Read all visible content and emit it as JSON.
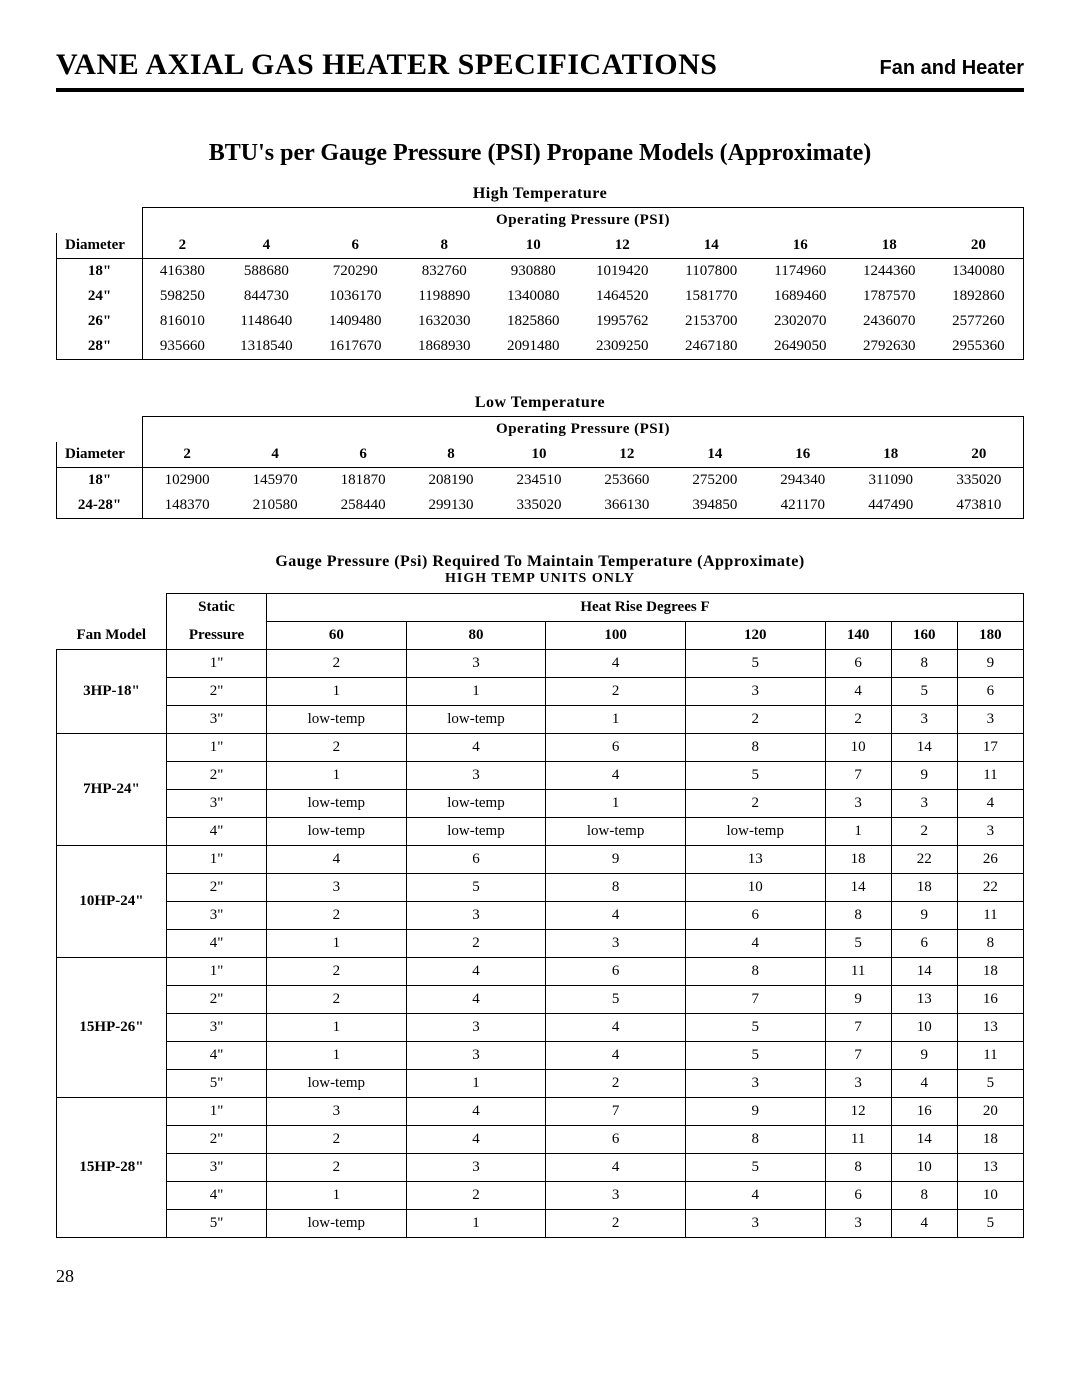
{
  "header": {
    "title": "VANE AXIAL GAS HEATER SPECIFICATIONS",
    "subtitle": "Fan and Heater"
  },
  "section_title": "BTU's  per Gauge Pressure (PSI) Propane Models (Approximate)",
  "high_temp": {
    "label": "High Temperature",
    "op_label": "Operating Pressure (PSI)",
    "diam_label": "Diameter",
    "psi": [
      "2",
      "4",
      "6",
      "8",
      "10",
      "12",
      "14",
      "16",
      "18",
      "20"
    ],
    "rows": [
      {
        "d": "18\"",
        "v": [
          "416380",
          "588680",
          "720290",
          "832760",
          "930880",
          "1019420",
          "1107800",
          "1174960",
          "1244360",
          "1340080"
        ]
      },
      {
        "d": "24\"",
        "v": [
          "598250",
          "844730",
          "1036170",
          "1198890",
          "1340080",
          "1464520",
          "1581770",
          "1689460",
          "1787570",
          "1892860"
        ]
      },
      {
        "d": "26\"",
        "v": [
          "816010",
          "1148640",
          "1409480",
          "1632030",
          "1825860",
          "1995762",
          "2153700",
          "2302070",
          "2436070",
          "2577260"
        ]
      },
      {
        "d": "28\"",
        "v": [
          "935660",
          "1318540",
          "1617670",
          "1868930",
          "2091480",
          "2309250",
          "2467180",
          "2649050",
          "2792630",
          "2955360"
        ]
      }
    ]
  },
  "low_temp": {
    "label": "Low Temperature",
    "op_label": "Operating Pressure (PSI)",
    "diam_label": "Diameter",
    "psi": [
      "2",
      "4",
      "6",
      "8",
      "10",
      "12",
      "14",
      "16",
      "18",
      "20"
    ],
    "rows": [
      {
        "d": "18\"",
        "v": [
          "102900",
          "145970",
          "181870",
          "208190",
          "234510",
          "253660",
          "275200",
          "294340",
          "311090",
          "335020"
        ]
      },
      {
        "d": "24-28\"",
        "v": [
          "148370",
          "210580",
          "258440",
          "299130",
          "335020",
          "366130",
          "394850",
          "421170",
          "447490",
          "473810"
        ]
      }
    ]
  },
  "gauge": {
    "caption1": "Gauge Pressure (Psi) Required To Maintain Temperature (Approximate)",
    "caption2": "HIGH TEMP UNITS ONLY",
    "fan_label": "Fan Model",
    "sp_label_1": "Static",
    "sp_label_2": "Pressure",
    "heat_label": "Heat Rise Degrees F",
    "degrees": [
      "60",
      "80",
      "100",
      "120",
      "140",
      "160",
      "180"
    ],
    "groups": [
      {
        "model": "3HP-18\"",
        "rows": [
          {
            "sp": "1\"",
            "v": [
              "2",
              "3",
              "4",
              "5",
              "6",
              "8",
              "9"
            ]
          },
          {
            "sp": "2\"",
            "v": [
              "1",
              "1",
              "2",
              "3",
              "4",
              "5",
              "6"
            ]
          },
          {
            "sp": "3\"",
            "v": [
              "low-temp",
              "low-temp",
              "1",
              "2",
              "2",
              "3",
              "3"
            ]
          }
        ]
      },
      {
        "model": "7HP-24\"",
        "rows": [
          {
            "sp": "1\"",
            "v": [
              "2",
              "4",
              "6",
              "8",
              "10",
              "14",
              "17"
            ]
          },
          {
            "sp": "2\"",
            "v": [
              "1",
              "3",
              "4",
              "5",
              "7",
              "9",
              "11"
            ]
          },
          {
            "sp": "3\"",
            "v": [
              "low-temp",
              "low-temp",
              "1",
              "2",
              "3",
              "3",
              "4"
            ]
          },
          {
            "sp": "4\"",
            "v": [
              "low-temp",
              "low-temp",
              "low-temp",
              "low-temp",
              "1",
              "2",
              "3"
            ]
          }
        ]
      },
      {
        "model": "10HP-24\"",
        "rows": [
          {
            "sp": "1\"",
            "v": [
              "4",
              "6",
              "9",
              "13",
              "18",
              "22",
              "26"
            ]
          },
          {
            "sp": "2\"",
            "v": [
              "3",
              "5",
              "8",
              "10",
              "14",
              "18",
              "22"
            ]
          },
          {
            "sp": "3\"",
            "v": [
              "2",
              "3",
              "4",
              "6",
              "8",
              "9",
              "11"
            ]
          },
          {
            "sp": "4\"",
            "v": [
              "1",
              "2",
              "3",
              "4",
              "5",
              "6",
              "8"
            ]
          }
        ]
      },
      {
        "model": "15HP-26\"",
        "rows": [
          {
            "sp": "1\"",
            "v": [
              "2",
              "4",
              "6",
              "8",
              "11",
              "14",
              "18"
            ]
          },
          {
            "sp": "2\"",
            "v": [
              "2",
              "4",
              "5",
              "7",
              "9",
              "13",
              "16"
            ]
          },
          {
            "sp": "3\"",
            "v": [
              "1",
              "3",
              "4",
              "5",
              "7",
              "10",
              "13"
            ]
          },
          {
            "sp": "4\"",
            "v": [
              "1",
              "3",
              "4",
              "5",
              "7",
              "9",
              "11"
            ]
          },
          {
            "sp": "5\"",
            "v": [
              "low-temp",
              "1",
              "2",
              "3",
              "3",
              "4",
              "5"
            ]
          }
        ]
      },
      {
        "model": "15HP-28\"",
        "rows": [
          {
            "sp": "1\"",
            "v": [
              "3",
              "4",
              "7",
              "9",
              "12",
              "16",
              "20"
            ]
          },
          {
            "sp": "2\"",
            "v": [
              "2",
              "4",
              "6",
              "8",
              "11",
              "14",
              "18"
            ]
          },
          {
            "sp": "3\"",
            "v": [
              "2",
              "3",
              "4",
              "5",
              "8",
              "10",
              "13"
            ]
          },
          {
            "sp": "4\"",
            "v": [
              "1",
              "2",
              "3",
              "4",
              "6",
              "8",
              "10"
            ]
          },
          {
            "sp": "5\"",
            "v": [
              "low-temp",
              "1",
              "2",
              "3",
              "3",
              "4",
              "5"
            ]
          }
        ]
      }
    ]
  },
  "page_number": "28"
}
